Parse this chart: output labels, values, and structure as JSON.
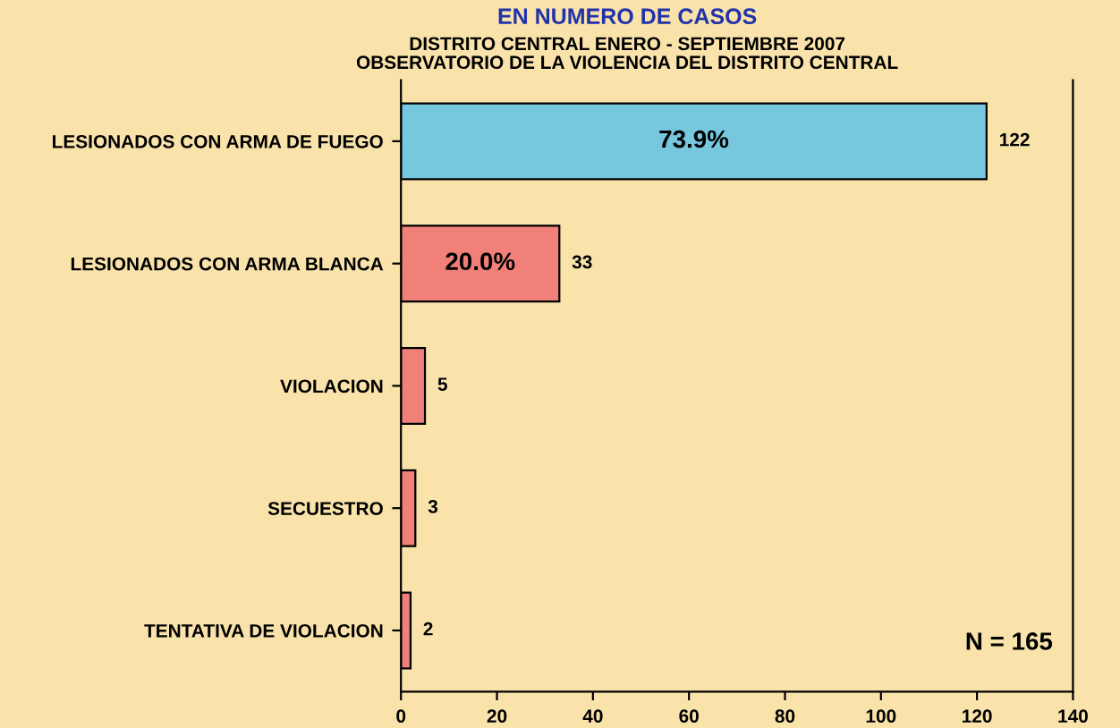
{
  "chart_data": {
    "type": "bar",
    "orientation": "horizontal",
    "title": "EN NUMERO DE CASOS",
    "subtitle": "DISTRITO CENTRAL ENERO - SEPTIEMBRE 2007\nOBSERVATORIO DE LA VIOLENCIA DEL DISTRITO CENTRAL",
    "categories": [
      "LESIONADOS CON ARMA DE FUEGO",
      "LESIONADOS CON ARMA BLANCA",
      "VIOLACION",
      "SECUESTRO",
      "TENTATIVA DE VIOLACION"
    ],
    "values": [
      122,
      33,
      5,
      3,
      2
    ],
    "colors": [
      "#77c7df",
      "#f08078",
      "#f08078",
      "#f08078",
      "#f08078"
    ],
    "data_labels": true,
    "xlim": [
      0,
      140
    ],
    "xticks": [
      0,
      20,
      40,
      60,
      80,
      100,
      120,
      140
    ],
    "grid": false,
    "legend": false,
    "annotations": [
      "73.9%",
      "20.0%",
      "N = 165"
    ]
  }
}
